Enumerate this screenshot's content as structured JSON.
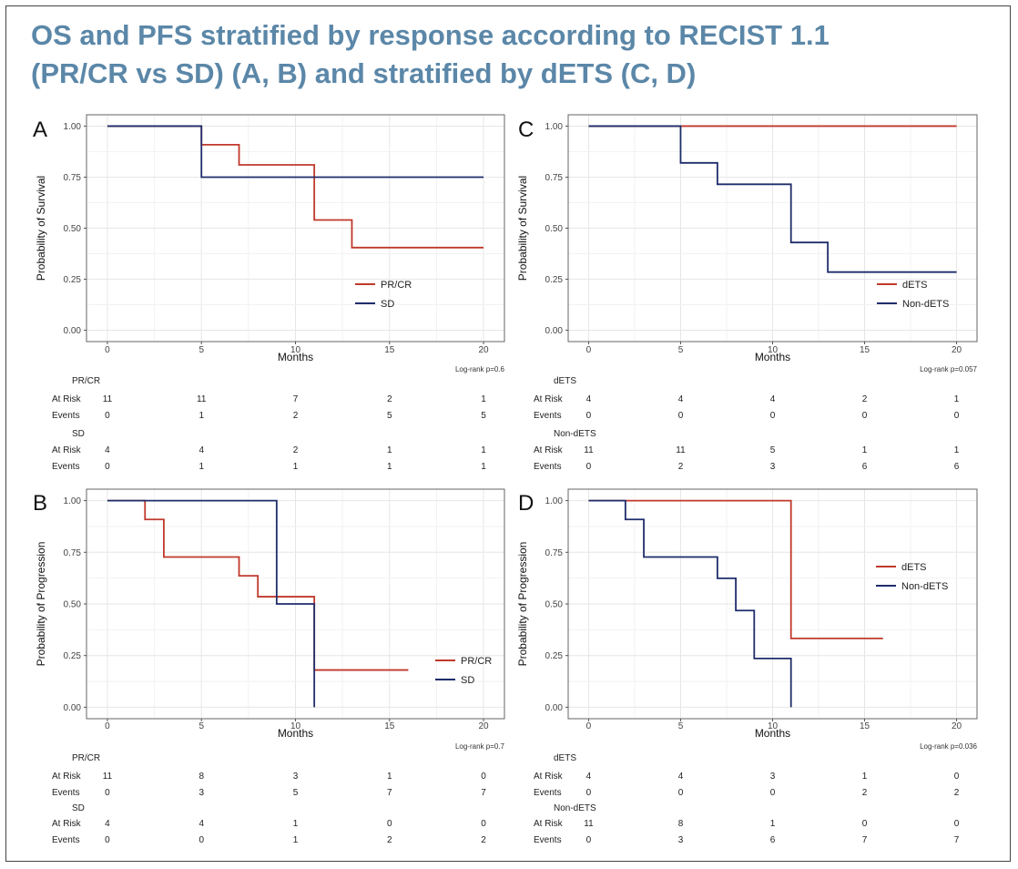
{
  "figure": {
    "title_line1": "OS and PFS stratified by response according to RECIST 1.1",
    "title_line2": "(PR/CR vs SD) (A, B) and stratified by dETS (C, D)"
  },
  "colors": {
    "red": "#c0392b",
    "blue": "#1f2d6b"
  },
  "chart_data": [
    {
      "panel": "A",
      "type": "line",
      "step": true,
      "xlabel": "Months",
      "ylabel": "Probability of Survival",
      "xlim": [
        0,
        20
      ],
      "ylim": [
        0,
        1
      ],
      "xticks": [
        "0",
        "5",
        "10",
        "15",
        "20"
      ],
      "yticks": [
        "0.00",
        "0.25",
        "0.50",
        "0.75",
        "1.00"
      ],
      "legend_position": "right-middle",
      "pvalue": "Log-rank p=0.6",
      "series": [
        {
          "name": "PR/CR",
          "color": "#c0392b",
          "x": [
            0,
            5,
            7,
            11,
            13,
            20
          ],
          "y": [
            1.0,
            0.909,
            0.81,
            0.54,
            0.405,
            0.405
          ]
        },
        {
          "name": "SD",
          "color": "#1f2d6b",
          "x": [
            0,
            5,
            20
          ],
          "y": [
            1.0,
            0.75,
            0.75
          ]
        }
      ],
      "risk_table": [
        {
          "group": "PR/CR",
          "at_risk": [
            "11",
            "11",
            "7",
            "2",
            "1"
          ],
          "events": [
            "0",
            "1",
            "2",
            "5",
            "5"
          ]
        },
        {
          "group": "SD",
          "at_risk": [
            "4",
            "4",
            "2",
            "1",
            "1"
          ],
          "events": [
            "0",
            "1",
            "1",
            "1",
            "1"
          ]
        }
      ],
      "row_labels": {
        "at_risk": "At Risk",
        "events": "Events"
      }
    },
    {
      "panel": "C",
      "type": "line",
      "step": true,
      "xlabel": "Months",
      "ylabel": "Probability of Survival",
      "xlim": [
        0,
        20
      ],
      "ylim": [
        0,
        1
      ],
      "xticks": [
        "0",
        "5",
        "10",
        "15",
        "20"
      ],
      "yticks": [
        "0.00",
        "0.25",
        "0.50",
        "0.75",
        "1.00"
      ],
      "legend_position": "bottom-right",
      "pvalue": "Log-rank p=0.057",
      "series": [
        {
          "name": "dETS",
          "color": "#c0392b",
          "x": [
            0,
            20
          ],
          "y": [
            1.0,
            1.0
          ]
        },
        {
          "name": "Non-dETS",
          "color": "#1f2d6b",
          "x": [
            0,
            5,
            7,
            11,
            13,
            20
          ],
          "y": [
            1.0,
            0.82,
            0.715,
            0.43,
            0.285,
            0.285
          ]
        }
      ],
      "risk_table": [
        {
          "group": "dETS",
          "at_risk": [
            "4",
            "4",
            "4",
            "2",
            "1"
          ],
          "events": [
            "0",
            "0",
            "0",
            "0",
            "0"
          ]
        },
        {
          "group": "Non-dETS",
          "at_risk": [
            "11",
            "11",
            "5",
            "1",
            "1"
          ],
          "events": [
            "0",
            "2",
            "3",
            "6",
            "6"
          ]
        }
      ],
      "row_labels": {
        "at_risk": "At Risk",
        "events": "Events"
      }
    },
    {
      "panel": "B",
      "type": "line",
      "step": true,
      "xlabel": "Months",
      "ylabel": "Probability of Progression",
      "xlim": [
        0,
        20
      ],
      "ylim": [
        0,
        1
      ],
      "xticks": [
        "0",
        "5",
        "10",
        "15",
        "20"
      ],
      "yticks": [
        "0.00",
        "0.25",
        "0.50",
        "0.75",
        "1.00"
      ],
      "legend_position": "bottom-right",
      "pvalue": "Log-rank p=0.7",
      "series": [
        {
          "name": "PR/CR",
          "color": "#c0392b",
          "x": [
            0,
            2,
            3,
            7,
            8,
            11,
            16
          ],
          "y": [
            1.0,
            0.909,
            0.727,
            0.636,
            0.535,
            0.18,
            0.18
          ]
        },
        {
          "name": "SD",
          "color": "#1f2d6b",
          "x": [
            0,
            9,
            11,
            11
          ],
          "y": [
            1.0,
            0.5,
            0.5,
            0.0
          ]
        }
      ],
      "risk_table": [
        {
          "group": "PR/CR",
          "at_risk": [
            "11",
            "8",
            "3",
            "1",
            "0"
          ],
          "events": [
            "0",
            "3",
            "5",
            "7",
            "7"
          ]
        },
        {
          "group": "SD",
          "at_risk": [
            "4",
            "4",
            "1",
            "0",
            "0"
          ],
          "events": [
            "0",
            "0",
            "1",
            "2",
            "2"
          ]
        }
      ],
      "row_labels": {
        "at_risk": "At Risk",
        "events": "Events"
      }
    },
    {
      "panel": "D",
      "type": "line",
      "step": true,
      "xlabel": "Months",
      "ylabel": "Probability of Progression",
      "xlim": [
        0,
        20
      ],
      "ylim": [
        0,
        1
      ],
      "xticks": [
        "0",
        "5",
        "10",
        "15",
        "20"
      ],
      "yticks": [
        "0.00",
        "0.25",
        "0.50",
        "0.75",
        "1.00"
      ],
      "legend_position": "right-middle",
      "pvalue": "Log-rank p=0.036",
      "series": [
        {
          "name": "dETS",
          "color": "#c0392b",
          "x": [
            0,
            11,
            16
          ],
          "y": [
            1.0,
            0.333,
            0.333
          ]
        },
        {
          "name": "Non-dETS",
          "color": "#1f2d6b",
          "x": [
            0,
            2,
            3,
            7,
            8,
            9,
            11,
            11
          ],
          "y": [
            1.0,
            0.909,
            0.727,
            0.624,
            0.468,
            0.236,
            0.236,
            0.0
          ]
        }
      ],
      "risk_table": [
        {
          "group": "dETS",
          "at_risk": [
            "4",
            "4",
            "3",
            "1",
            "0"
          ],
          "events": [
            "0",
            "0",
            "0",
            "2",
            "2"
          ]
        },
        {
          "group": "Non-dETS",
          "at_risk": [
            "11",
            "8",
            "1",
            "0",
            "0"
          ],
          "events": [
            "0",
            "3",
            "6",
            "7",
            "7"
          ]
        }
      ],
      "row_labels": {
        "at_risk": "At Risk",
        "events": "Events"
      }
    }
  ]
}
